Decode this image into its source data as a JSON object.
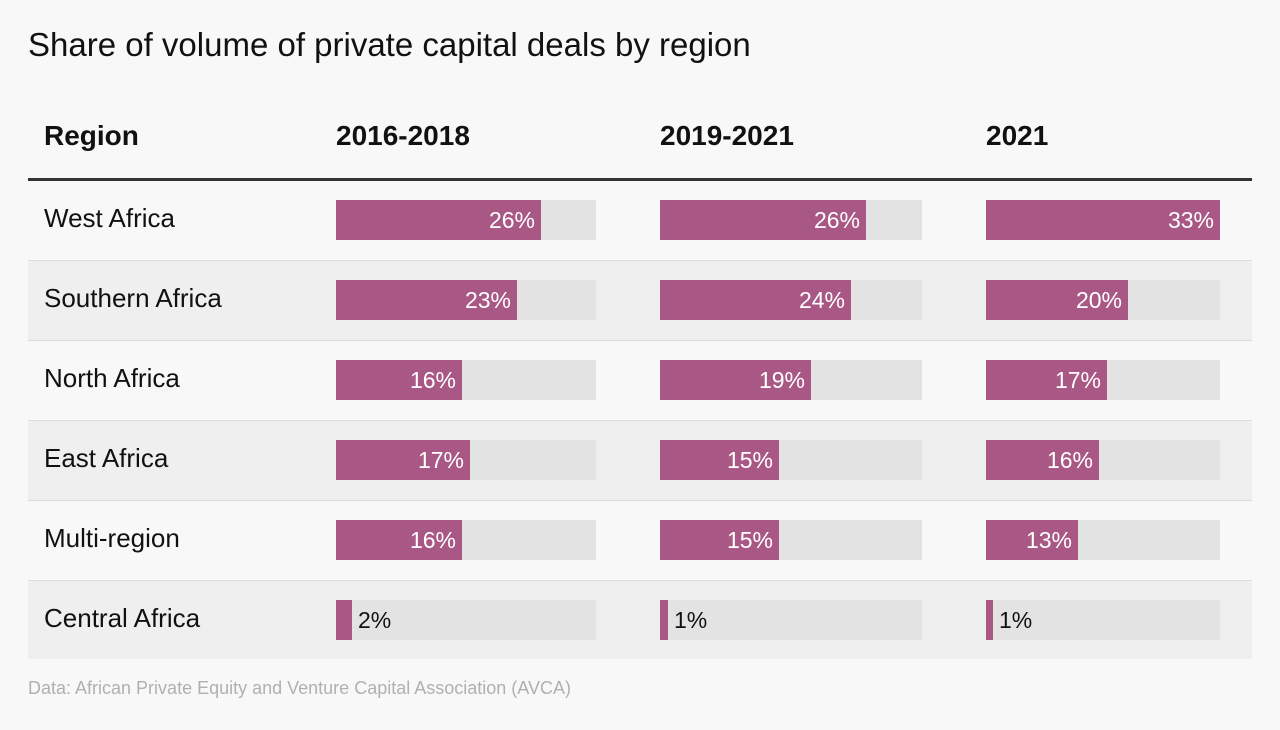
{
  "title": "Share of volume of private capital deals by region",
  "source": "Data: African Private Equity and Venture Capital Association (AVCA)",
  "colors": {
    "bar": "#a95886",
    "track": "#e3e3e3",
    "rule": "#333333"
  },
  "table": {
    "headers": [
      "Region",
      "2016-2018",
      "2019-2021",
      "2021"
    ]
  },
  "chart_data": {
    "type": "table",
    "title": "Share of volume of private capital deals by region",
    "columns": [
      "2016-2018",
      "2019-2021",
      "2021"
    ],
    "value_max_pct": 33,
    "rows": [
      {
        "region": "West Africa",
        "values": [
          26,
          26,
          33
        ],
        "labels": [
          "26%",
          "26%",
          "33%"
        ]
      },
      {
        "region": "Southern Africa",
        "values": [
          23,
          24,
          20
        ],
        "labels": [
          "23%",
          "24%",
          "20%"
        ]
      },
      {
        "region": "North Africa",
        "values": [
          16,
          19,
          17
        ],
        "labels": [
          "16%",
          "19%",
          "17%"
        ]
      },
      {
        "region": "East Africa",
        "values": [
          17,
          15,
          16
        ],
        "labels": [
          "17%",
          "15%",
          "16%"
        ]
      },
      {
        "region": "Multi-region",
        "values": [
          16,
          15,
          13
        ],
        "labels": [
          "16%",
          "15%",
          "13%"
        ]
      },
      {
        "region": "Central Africa",
        "values": [
          2,
          1,
          1
        ],
        "labels": [
          "2%",
          "1%",
          "1%"
        ]
      }
    ]
  }
}
